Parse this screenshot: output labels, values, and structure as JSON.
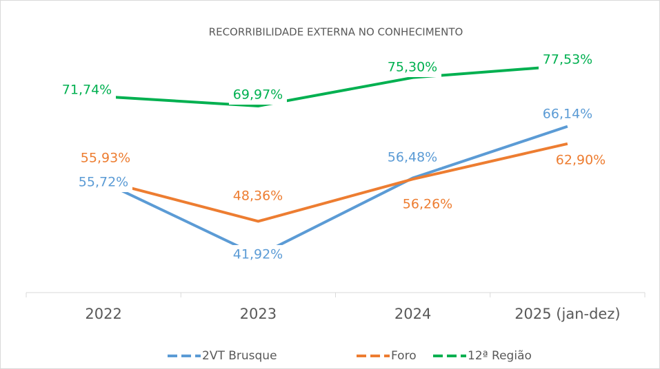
{
  "chart_data": {
    "type": "line",
    "title": "RECORRIBILIDADE EXTERNA NO CONHECIMENTO",
    "categories": [
      "2022",
      "2023",
      "2024",
      "2025 (jan-dez)"
    ],
    "series": [
      {
        "name": "2VT Brusque",
        "color": "#5b9bd5",
        "values": [
          55.72,
          41.92,
          56.48,
          66.14
        ],
        "value_labels": [
          "55,72%",
          "41,92%",
          "56,48%",
          "66,14%"
        ]
      },
      {
        "name": "Foro",
        "color": "#ed7d31",
        "values": [
          55.93,
          48.36,
          56.26,
          62.9
        ],
        "value_labels": [
          "55,93%",
          "48,36%",
          "56,26%",
          "62,90%"
        ]
      },
      {
        "name": "12ª Região",
        "color": "#00b050",
        "values": [
          71.74,
          69.97,
          75.3,
          77.53
        ],
        "value_labels": [
          "71,74%",
          "69,97%",
          "75,30%",
          "77,53%"
        ]
      }
    ],
    "ylim": [
      35,
      85
    ],
    "legend": "bottom"
  }
}
